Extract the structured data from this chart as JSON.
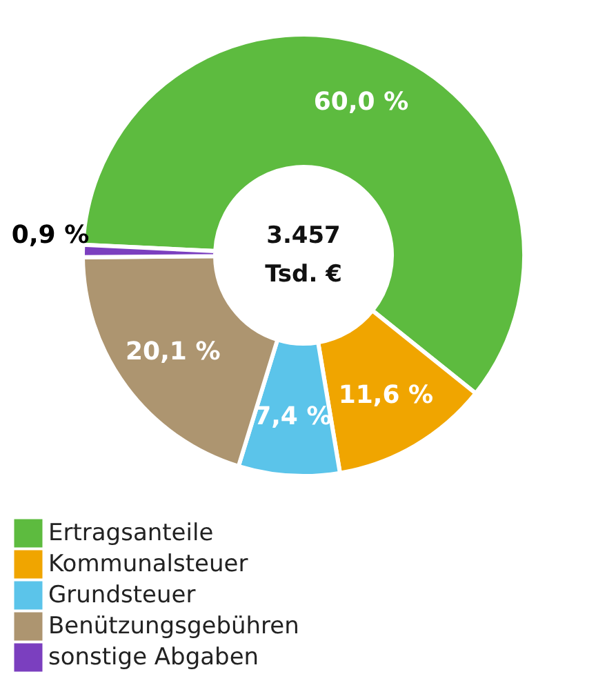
{
  "chart_data": {
    "type": "donut",
    "categories": [
      "Ertragsanteile",
      "Kommunalsteuer",
      "Grundsteuer",
      "Benützungsgebühren",
      "sonstige Abgaben"
    ],
    "values": [
      60.0,
      11.6,
      7.4,
      20.1,
      0.9
    ],
    "value_labels": [
      "60,0 %",
      "11,6 %",
      "7,4 %",
      "20,1 %",
      "0,9 %"
    ],
    "colors": [
      "#5dbb3f",
      "#f0a500",
      "#5bc4ea",
      "#ad9570",
      "#7b3fbf"
    ],
    "annotations": [
      "3.457",
      "Tsd. €"
    ],
    "legend": "bottom"
  }
}
